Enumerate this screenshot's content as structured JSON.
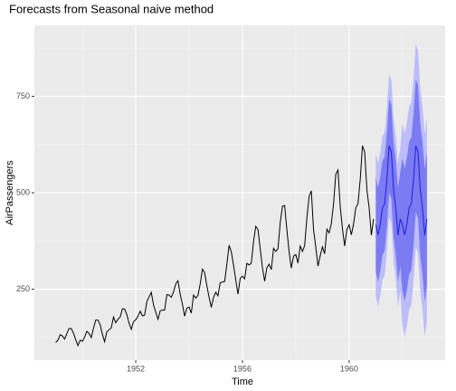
{
  "chart_data": {
    "type": "forecast-line",
    "title": "Forecasts from Seasonal naive method",
    "xlabel": "Time",
    "ylabel": "AirPassengers",
    "xlim": [
      1948.2,
      1963.6
    ],
    "ylim": [
      66,
      934
    ],
    "xticks": [
      1952,
      1956,
      1960
    ],
    "yticks": [
      250,
      500,
      750
    ],
    "xminor": [
      1950,
      1954,
      1958,
      1962
    ],
    "yminor": [
      125,
      375,
      625,
      875
    ],
    "grid": true,
    "actual": {
      "color": "#000000",
      "x": [
        1949,
        1949.083,
        1949.167,
        1949.25,
        1949.333,
        1949.417,
        1949.5,
        1949.583,
        1949.667,
        1949.75,
        1949.833,
        1949.917,
        1950,
        1950.083,
        1950.167,
        1950.25,
        1950.333,
        1950.417,
        1950.5,
        1950.583,
        1950.667,
        1950.75,
        1950.833,
        1950.917,
        1951,
        1951.083,
        1951.167,
        1951.25,
        1951.333,
        1951.417,
        1951.5,
        1951.583,
        1951.667,
        1951.75,
        1951.833,
        1951.917,
        1952,
        1952.083,
        1952.167,
        1952.25,
        1952.333,
        1952.417,
        1952.5,
        1952.583,
        1952.667,
        1952.75,
        1952.833,
        1952.917,
        1953,
        1953.083,
        1953.167,
        1953.25,
        1953.333,
        1953.417,
        1953.5,
        1953.583,
        1953.667,
        1953.75,
        1953.833,
        1953.917,
        1954,
        1954.083,
        1954.167,
        1954.25,
        1954.333,
        1954.417,
        1954.5,
        1954.583,
        1954.667,
        1954.75,
        1954.833,
        1954.917,
        1955,
        1955.083,
        1955.167,
        1955.25,
        1955.333,
        1955.417,
        1955.5,
        1955.583,
        1955.667,
        1955.75,
        1955.833,
        1955.917,
        1956,
        1956.083,
        1956.167,
        1956.25,
        1956.333,
        1956.417,
        1956.5,
        1956.583,
        1956.667,
        1956.75,
        1956.833,
        1956.917,
        1957,
        1957.083,
        1957.167,
        1957.25,
        1957.333,
        1957.417,
        1957.5,
        1957.583,
        1957.667,
        1957.75,
        1957.833,
        1957.917,
        1958,
        1958.083,
        1958.167,
        1958.25,
        1958.333,
        1958.417,
        1958.5,
        1958.583,
        1958.667,
        1958.75,
        1958.833,
        1958.917,
        1959,
        1959.083,
        1959.167,
        1959.25,
        1959.333,
        1959.417,
        1959.5,
        1959.583,
        1959.667,
        1959.75,
        1959.833,
        1959.917,
        1960,
        1960.083,
        1960.167,
        1960.25,
        1960.333,
        1960.417,
        1960.5,
        1960.583,
        1960.667,
        1960.75,
        1960.833,
        1960.917
      ],
      "values": [
        112,
        118,
        132,
        129,
        121,
        135,
        148,
        148,
        136,
        119,
        104,
        118,
        115,
        126,
        141,
        135,
        125,
        149,
        170,
        170,
        158,
        133,
        114,
        140,
        145,
        150,
        178,
        163,
        172,
        178,
        199,
        199,
        184,
        162,
        146,
        166,
        171,
        180,
        193,
        181,
        183,
        218,
        230,
        242,
        209,
        191,
        172,
        194,
        196,
        196,
        236,
        235,
        229,
        243,
        264,
        272,
        237,
        211,
        180,
        201,
        204,
        188,
        235,
        227,
        234,
        264,
        302,
        293,
        259,
        229,
        203,
        229,
        242,
        233,
        267,
        269,
        270,
        315,
        364,
        347,
        312,
        274,
        237,
        278,
        284,
        277,
        317,
        313,
        318,
        374,
        413,
        405,
        355,
        306,
        271,
        306,
        315,
        301,
        356,
        348,
        355,
        422,
        465,
        467,
        404,
        347,
        305,
        336,
        340,
        318,
        362,
        348,
        363,
        435,
        491,
        505,
        404,
        359,
        310,
        337,
        360,
        342,
        406,
        396,
        420,
        472,
        548,
        559,
        463,
        407,
        362,
        405,
        417,
        391,
        419,
        461,
        472,
        535,
        622,
        606,
        508,
        461,
        390,
        432
      ]
    },
    "forecast": {
      "color": "#1f1fe0",
      "color80": "#7b7bf2",
      "color95": "#bdbdfa",
      "x": [
        1961,
        1961.083,
        1961.167,
        1961.25,
        1961.333,
        1961.417,
        1961.5,
        1961.583,
        1961.667,
        1961.75,
        1961.833,
        1961.917,
        1962,
        1962.083,
        1962.167,
        1962.25,
        1962.333,
        1962.417,
        1962.5,
        1962.583,
        1962.667,
        1962.75,
        1962.833,
        1962.917
      ],
      "values": [
        417,
        391,
        419,
        461,
        472,
        535,
        622,
        606,
        508,
        461,
        390,
        432,
        417,
        391,
        419,
        461,
        472,
        535,
        622,
        606,
        508,
        461,
        390,
        432
      ],
      "lo80": [
        295,
        269,
        297,
        339,
        350,
        413,
        500,
        484,
        386,
        339,
        268,
        310,
        245,
        219,
        247,
        289,
        300,
        363,
        450,
        434,
        336,
        289,
        218,
        260
      ],
      "hi80": [
        539,
        513,
        541,
        583,
        594,
        657,
        744,
        728,
        630,
        583,
        512,
        554,
        589,
        563,
        591,
        633,
        644,
        707,
        794,
        778,
        680,
        633,
        562,
        604
      ],
      "lo95": [
        231,
        205,
        233,
        275,
        286,
        349,
        436,
        420,
        322,
        275,
        204,
        246,
        154,
        128,
        156,
        198,
        209,
        272,
        359,
        343,
        245,
        198,
        127,
        169
      ],
      "hi95": [
        603,
        577,
        605,
        647,
        658,
        721,
        808,
        792,
        694,
        647,
        576,
        618,
        680,
        654,
        682,
        724,
        735,
        798,
        885,
        869,
        771,
        724,
        653,
        695
      ]
    }
  }
}
